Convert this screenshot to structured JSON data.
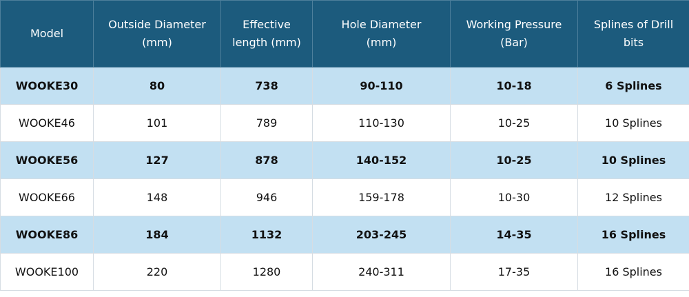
{
  "table": {
    "header": [
      [
        "Model"
      ],
      [
        "Outside Diameter",
        "(mm)"
      ],
      [
        "Effective",
        "length (mm)"
      ],
      [
        "Hole Diameter",
        "(mm)"
      ],
      [
        "Working Pressure",
        "(Bar)"
      ],
      [
        "Splines of Drill",
        "bits"
      ]
    ],
    "rows": [
      [
        "WOOKE30",
        "80",
        "738",
        "90-110",
        "10-18",
        "6 Splines"
      ],
      [
        "WOOKE46",
        "101",
        "789",
        "110-130",
        "10-25",
        "10 Splines"
      ],
      [
        "WOOKE56",
        "127",
        "878",
        "140-152",
        "10-25",
        "10 Splines"
      ],
      [
        "WOOKE66",
        "148",
        "946",
        "159-178",
        "10-30",
        "12 Splines"
      ],
      [
        "WOOKE86",
        "184",
        "1132",
        "203-245",
        "14-35",
        "16 Splines"
      ],
      [
        "WOOKE100",
        "220",
        "1280",
        "240-311",
        "17-35",
        "16 Splines"
      ]
    ]
  }
}
